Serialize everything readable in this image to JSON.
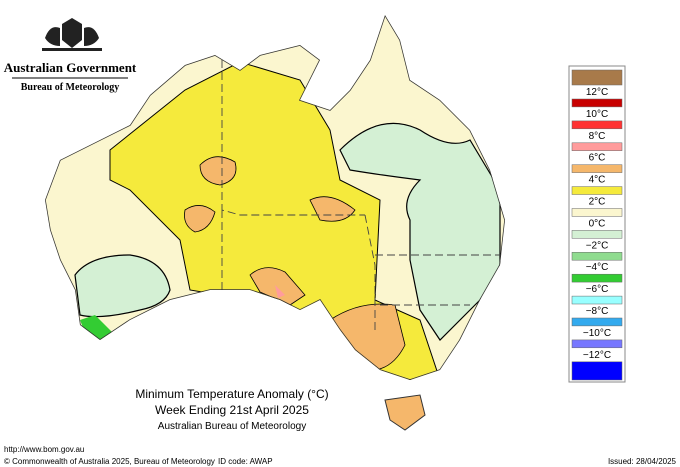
{
  "header": {
    "government": "Australian Government",
    "bureau": "Bureau of Meteorology"
  },
  "title": {
    "line1": "Minimum Temperature Anomaly (°C)",
    "line2": "Week Ending 21st April 2025",
    "line3": "Australian Bureau of Meteorology"
  },
  "legend": {
    "colors": [
      "#a87a4a",
      "#c80000",
      "#ff3333",
      "#ff9c9c",
      "#f5b76b",
      "#f5ea3c",
      "#fbf6cf",
      "#d4f0d4",
      "#8fdc8f",
      "#33cc33",
      "#99ffff",
      "#33aaee",
      "#7777ff",
      "#0000ff"
    ],
    "labels": [
      "12°C",
      "10°C",
      "8°C",
      "6°C",
      "4°C",
      "2°C",
      "0°C",
      "−2°C",
      "−4°C",
      "−6°C",
      "−8°C",
      "−10°C",
      "−12°C"
    ]
  },
  "footer": {
    "url": "http://www.bom.gov.au",
    "copyright": "© Commonwealth of Australia 2025, Bureau of Meteorology",
    "id_code": "ID code: AWAP",
    "issued": "Issued: 28/04/2025"
  }
}
